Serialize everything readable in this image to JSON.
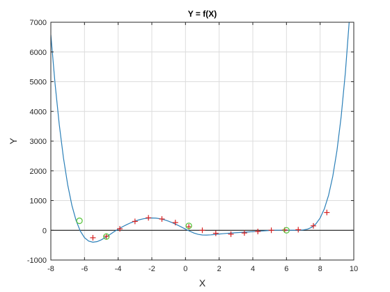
{
  "chart_data": {
    "type": "line",
    "title": "Y = f(X)",
    "xlabel": "X",
    "ylabel": "Y",
    "xlim": [
      -8,
      10
    ],
    "ylim": [
      -1000,
      7000
    ],
    "xticks": [
      -8,
      -6,
      -4,
      -2,
      0,
      2,
      4,
      6,
      8,
      10
    ],
    "yticks": [
      -1000,
      0,
      1000,
      2000,
      3000,
      4000,
      5000,
      6000,
      7000
    ],
    "grid": true,
    "colors": {
      "curve": "#2a7fb8",
      "zero_line": "#000000",
      "markers_plus": "#d62020",
      "markers_circle": "#5cc640",
      "grid": "#dcdcdc",
      "axes_box": "#262626"
    },
    "series": [
      {
        "values_x": [
          -8.0,
          -7.75,
          -7.5,
          -7.25,
          -7.0,
          -6.75,
          -6.5,
          -6.25,
          -6.0,
          -5.75,
          -5.5,
          -5.25,
          -5.0,
          -4.75,
          -4.5,
          -4.25,
          -4.0,
          -3.75,
          -3.5,
          -3.25,
          -3.0,
          -2.75,
          -2.5,
          -2.25,
          -2.0,
          -1.75,
          -1.5,
          -1.25,
          -1.0,
          -0.75,
          -0.5,
          -0.25,
          0.0,
          0.25,
          0.5,
          0.75,
          1.0,
          1.25,
          1.5,
          1.75,
          2.0,
          2.25,
          2.5,
          2.75,
          3.0,
          3.25,
          3.5,
          3.75,
          4.0,
          4.25,
          4.5,
          4.75,
          5.0,
          5.25,
          5.5,
          5.75,
          6.0,
          6.25,
          6.5,
          6.75,
          7.0,
          7.25,
          7.5,
          7.75,
          8.0,
          8.25,
          8.5,
          8.75,
          9.0,
          9.25,
          9.5,
          9.75,
          10.0
        ],
        "values_y": [
          6577,
          4937,
          3561,
          2434,
          1536,
          841,
          329,
          -25,
          -247,
          -364,
          -401,
          -380,
          -320,
          -238,
          -145,
          -50,
          37,
          117,
          189,
          254,
          309,
          354,
          388,
          409,
          416,
          409,
          388,
          353,
          305,
          247,
          182,
          112,
          40,
          -29,
          -91,
          -136,
          -158,
          -161,
          -153,
          -140,
          -126,
          -113,
          -101,
          -91,
          -82,
          -73,
          -64,
          -55,
          -45,
          -35,
          -25,
          -15,
          -6,
          1,
          4,
          5,
          4,
          3,
          3,
          4,
          13,
          40,
          101,
          217,
          414,
          721,
          1173,
          1811,
          2679,
          3827,
          5309,
          7185,
          9520
        ]
      }
    ],
    "markers_plus": {
      "x": [
        -5.5,
        -4.7,
        -3.9,
        -3.0,
        -2.2,
        -1.4,
        -0.6,
        0.2,
        1.0,
        1.8,
        2.7,
        3.5,
        4.3,
        5.1,
        5.9,
        6.7,
        7.6,
        8.4
      ],
      "y": [
        -250,
        -200,
        50,
        300,
        420,
        380,
        260,
        120,
        0,
        -100,
        -130,
        -90,
        -40,
        0,
        10,
        20,
        150,
        600
      ]
    },
    "markers_circle": {
      "x": [
        -6.3,
        -4.7,
        0.2,
        6.0
      ],
      "y": [
        320,
        -210,
        150,
        0
      ]
    }
  }
}
